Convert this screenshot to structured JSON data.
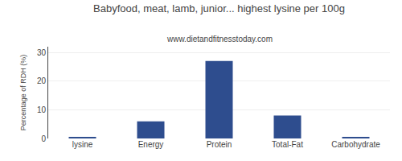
{
  "chart_data": {
    "type": "bar",
    "title": "Babyfood, meat, lamb, junior... highest lysine per 100g",
    "subtitle": "www.dietandfitnesstoday.com",
    "ylabel": "Percentage of RDH (%)",
    "categories": [
      "lysine",
      "Energy",
      "Protein",
      "Total-Fat",
      "Carbohydrate"
    ],
    "values": [
      0.3,
      6.0,
      27.0,
      8.0,
      0.5
    ],
    "color": "#2e4d8e",
    "ylim": [
      0,
      32
    ],
    "yticks": [
      0,
      10,
      20,
      30
    ],
    "grid": true
  }
}
